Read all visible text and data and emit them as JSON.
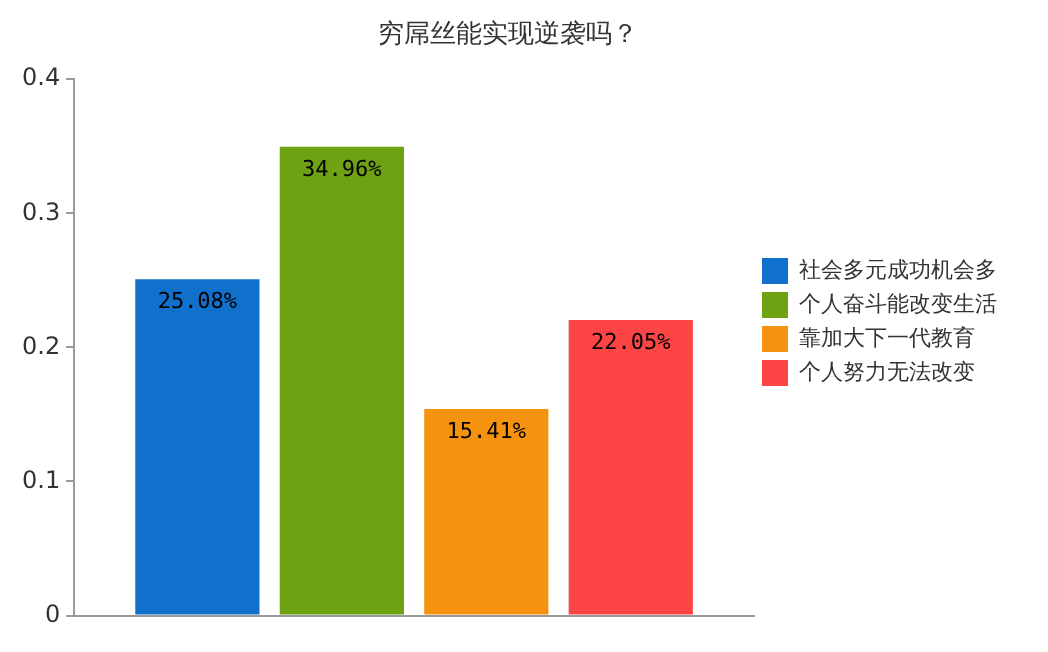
{
  "chart_data": {
    "type": "bar",
    "title": "穷屌丝能实现逆袭吗？",
    "categories": [
      null
    ],
    "series": [
      {
        "name": "社会多元成功机会多",
        "color": "#1170cc",
        "values": [
          0.2508
        ],
        "value_labels": [
          "25.08%"
        ]
      },
      {
        "name": "个人奋斗能改变生活",
        "color": "#6ea212",
        "values": [
          0.3496
        ],
        "value_labels": [
          "34.96%"
        ]
      },
      {
        "name": "靠加大下一代教育",
        "color": "#f59311",
        "values": [
          0.1541
        ],
        "value_labels": [
          "15.41%"
        ]
      },
      {
        "name": "个人努力无法改变",
        "color": "#fd4545",
        "values": [
          0.2205
        ],
        "value_labels": [
          "22.05%"
        ]
      }
    ],
    "ylim": [
      0,
      0.4
    ],
    "yticks": [
      0,
      0.1,
      0.2,
      0.3,
      0.4
    ],
    "grid": false,
    "legend": "right"
  }
}
